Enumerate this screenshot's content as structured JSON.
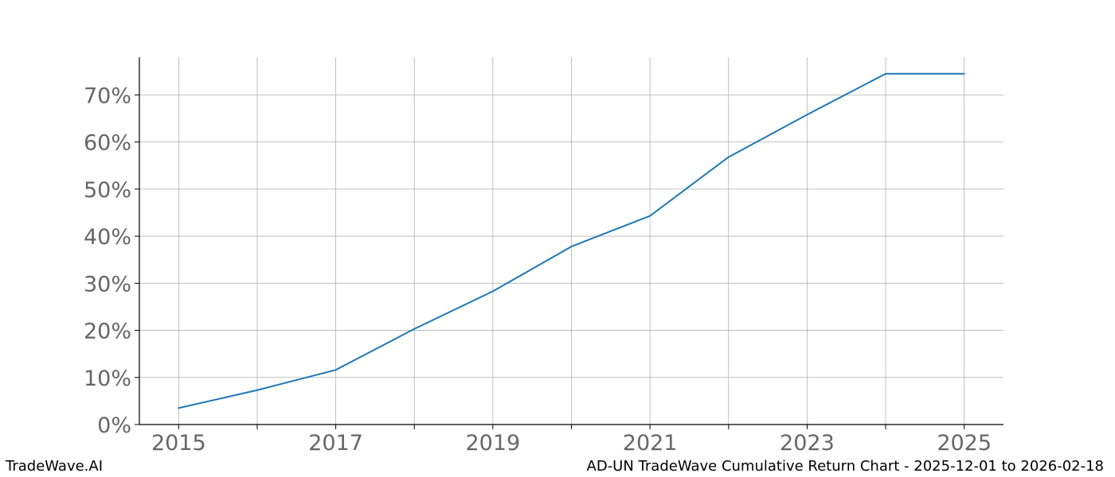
{
  "chart_data": {
    "type": "line",
    "title": "",
    "xlabel": "",
    "ylabel": "",
    "x": [
      2015,
      2016,
      2017,
      2018,
      2019,
      2020,
      2021,
      2022,
      2023,
      2024,
      2025
    ],
    "series": [
      {
        "values": [
          3.5,
          7.3,
          11.6,
          20.3,
          28.3,
          37.8,
          44.3,
          56.8,
          65.8,
          74.5,
          74.5
        ],
        "color": "#1f77b4"
      }
    ],
    "x_ticks": [
      2015,
      2016,
      2017,
      2018,
      2019,
      2020,
      2021,
      2022,
      2023,
      2024,
      2025
    ],
    "x_tick_labels": [
      "2015",
      "",
      "2017",
      "",
      "2019",
      "",
      "2021",
      "",
      "2023",
      "",
      "2025"
    ],
    "y_ticks": [
      0,
      10,
      20,
      30,
      40,
      50,
      60,
      70
    ],
    "y_tick_labels": [
      "0%",
      "10%",
      "20%",
      "30%",
      "40%",
      "50%",
      "60%",
      "70%"
    ],
    "xlim": [
      2014.5,
      2025.5
    ],
    "ylim": [
      0,
      78
    ],
    "grid": true,
    "legend": "none"
  },
  "footer": {
    "left": "TradeWave.AI",
    "right": "AD-UN TradeWave Cumulative Return Chart - 2025-12-01 to 2026-02-18"
  }
}
